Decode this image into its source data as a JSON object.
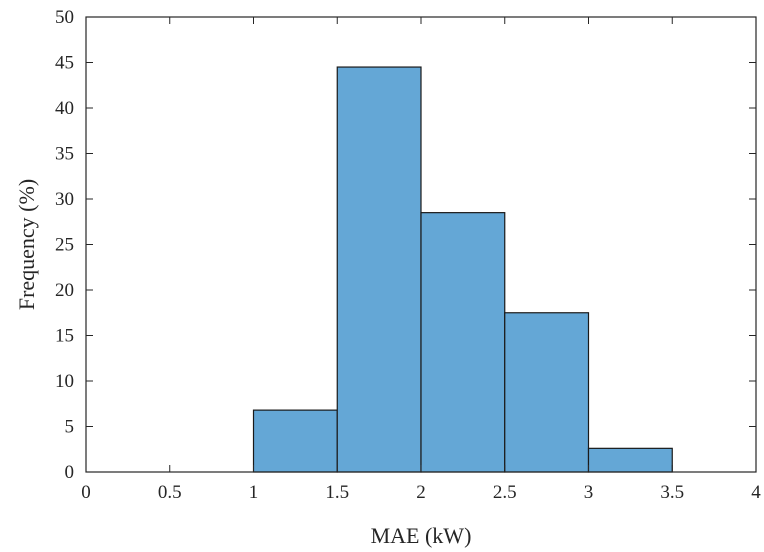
{
  "chart_data": {
    "type": "bar",
    "bins": [
      [
        1,
        1.5
      ],
      [
        1.5,
        2
      ],
      [
        2,
        2.5
      ],
      [
        2.5,
        3
      ],
      [
        3,
        3.5
      ]
    ],
    "values": [
      6.8,
      44.5,
      28.5,
      17.5,
      2.6
    ],
    "xlabel": "MAE (kW)",
    "ylabel": "Frequency (%)",
    "xlim": [
      0,
      4
    ],
    "ylim": [
      0,
      50
    ],
    "xticks": [
      "0",
      "0.5",
      "1",
      "1.5",
      "2",
      "2.5",
      "3",
      "3.5",
      "4"
    ],
    "yticks": [
      "0",
      "5",
      "10",
      "15",
      "20",
      "25",
      "30",
      "35",
      "40",
      "45",
      "50"
    ],
    "bar_color": "#64a7d6",
    "edge_color": "#1a1a1a",
    "grid": false
  }
}
